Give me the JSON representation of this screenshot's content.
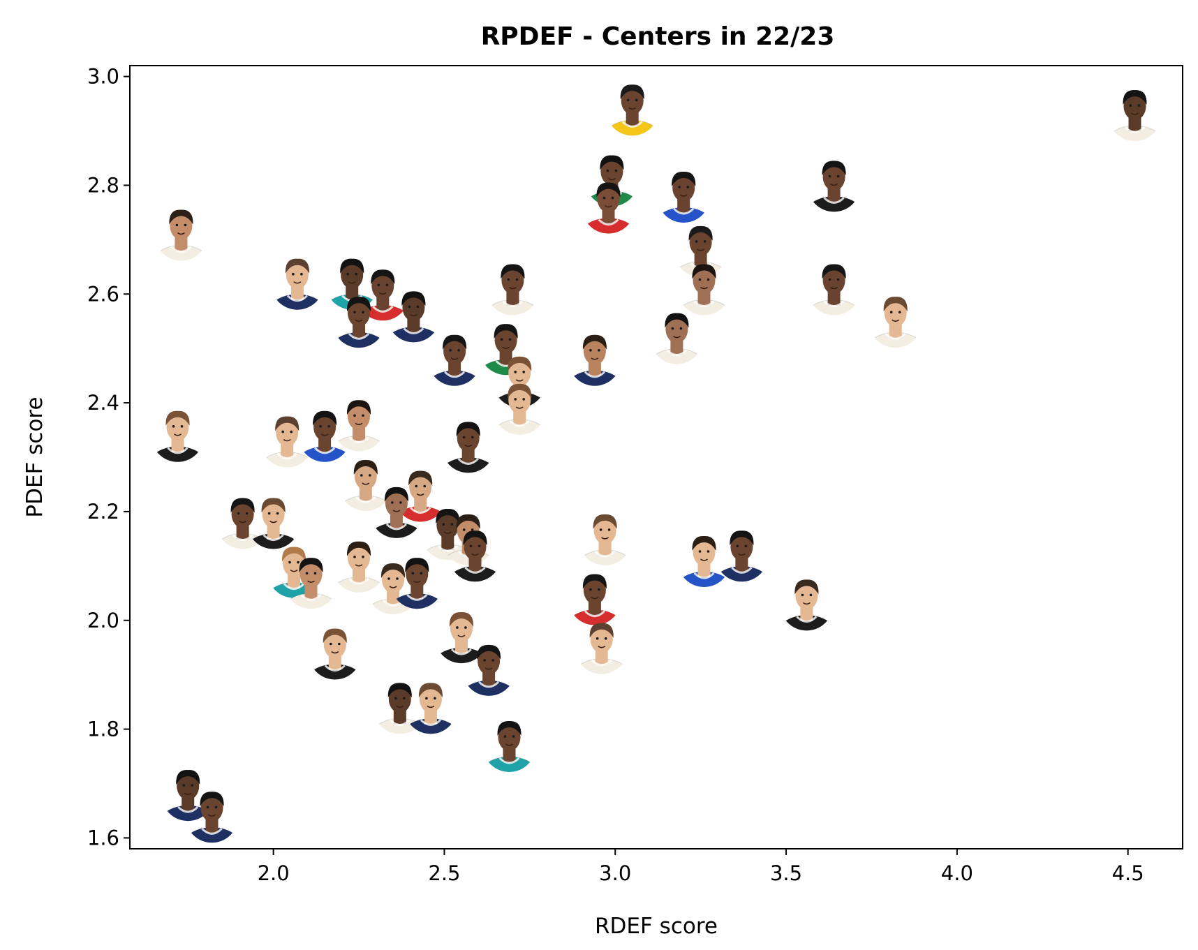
{
  "chart_data": {
    "type": "scatter",
    "title": "RPDEF - Centers in 22/23",
    "xlabel": "RDEF score",
    "ylabel": "PDEF score",
    "xlim": [
      1.58,
      4.66
    ],
    "ylim": [
      1.58,
      3.02
    ],
    "xticks": [
      "2.0",
      "2.5",
      "3.0",
      "3.5",
      "4.0",
      "4.5"
    ],
    "yticks": [
      "1.6",
      "1.8",
      "2.0",
      "2.2",
      "2.4",
      "2.6",
      "2.8",
      "3.0"
    ],
    "grid": false,
    "marker": "player-headshot",
    "points": [
      {
        "x": 3.05,
        "y": 2.94,
        "jersey": "#f5c518",
        "skin": "#6b4430",
        "hair": "#1a1a1a"
      },
      {
        "x": 4.52,
        "y": 2.93,
        "jersey": "#f3ede2",
        "skin": "#5a3a28",
        "hair": "#141414"
      },
      {
        "x": 2.99,
        "y": 2.81,
        "jersey": "#1e8a4a",
        "skin": "#6b4430",
        "hair": "#111111"
      },
      {
        "x": 2.98,
        "y": 2.76,
        "jersey": "#d62e2e",
        "skin": "#7a4e36",
        "hair": "#151515"
      },
      {
        "x": 3.2,
        "y": 2.78,
        "jersey": "#2454c8",
        "skin": "#6a4230",
        "hair": "#141414"
      },
      {
        "x": 3.64,
        "y": 2.8,
        "jersey": "#1c1c1c",
        "skin": "#6b4430",
        "hair": "#151515"
      },
      {
        "x": 1.73,
        "y": 2.71,
        "jersey": "#f3ede2",
        "skin": "#c48d6a",
        "hair": "#2c2017"
      },
      {
        "x": 3.25,
        "y": 2.68,
        "jersey": "#f3ede2",
        "skin": "#6b4430",
        "hair": "#1a1a1a"
      },
      {
        "x": 3.26,
        "y": 2.61,
        "jersey": "#f3ede2",
        "skin": "#a07055",
        "hair": "#1b1410"
      },
      {
        "x": 2.07,
        "y": 2.62,
        "jersey": "#1d3061",
        "skin": "#e4b893",
        "hair": "#5c4030"
      },
      {
        "x": 2.23,
        "y": 2.62,
        "jersey": "#1fa3a8",
        "skin": "#5a3a28",
        "hair": "#121212"
      },
      {
        "x": 2.32,
        "y": 2.6,
        "jersey": "#d62e2e",
        "skin": "#6a4230",
        "hair": "#151515"
      },
      {
        "x": 2.7,
        "y": 2.61,
        "jersey": "#f3ede2",
        "skin": "#6b4430",
        "hair": "#141414"
      },
      {
        "x": 3.64,
        "y": 2.61,
        "jersey": "#f3ede2",
        "skin": "#6a4230",
        "hair": "#151515"
      },
      {
        "x": 3.82,
        "y": 2.55,
        "jersey": "#f3ede2",
        "skin": "#e4b893",
        "hair": "#6b4a33"
      },
      {
        "x": 2.25,
        "y": 2.55,
        "jersey": "#1d3061",
        "skin": "#6b4430",
        "hair": "#141414"
      },
      {
        "x": 2.41,
        "y": 2.56,
        "jersey": "#1d3061",
        "skin": "#5a3a28",
        "hair": "#121212"
      },
      {
        "x": 2.53,
        "y": 2.48,
        "jersey": "#1d3061",
        "skin": "#6b4430",
        "hair": "#151515"
      },
      {
        "x": 2.68,
        "y": 2.5,
        "jersey": "#1e8a4a",
        "skin": "#6b4430",
        "hair": "#141414"
      },
      {
        "x": 2.94,
        "y": 2.48,
        "jersey": "#1d3061",
        "skin": "#b8835e",
        "hair": "#2a1e15"
      },
      {
        "x": 3.18,
        "y": 2.52,
        "jersey": "#f3ede2",
        "skin": "#a07055",
        "hair": "#121212"
      },
      {
        "x": 2.72,
        "y": 2.44,
        "jersey": "#1c1c1c",
        "skin": "#e4b893",
        "hair": "#7a5236"
      },
      {
        "x": 2.72,
        "y": 2.39,
        "jersey": "#f3ede2",
        "skin": "#e4b893",
        "hair": "#7a5236"
      },
      {
        "x": 1.72,
        "y": 2.34,
        "jersey": "#1c1c1c",
        "skin": "#e4b893",
        "hair": "#7a5236"
      },
      {
        "x": 2.04,
        "y": 2.33,
        "jersey": "#f3ede2",
        "skin": "#e4b893",
        "hair": "#5c4030"
      },
      {
        "x": 2.15,
        "y": 2.34,
        "jersey": "#2454c8",
        "skin": "#6b4430",
        "hair": "#141414"
      },
      {
        "x": 2.25,
        "y": 2.36,
        "jersey": "#f3ede2",
        "skin": "#c48d6a",
        "hair": "#1b1410"
      },
      {
        "x": 2.57,
        "y": 2.32,
        "jersey": "#1c1c1c",
        "skin": "#6b4430",
        "hair": "#121212"
      },
      {
        "x": 2.27,
        "y": 2.25,
        "jersey": "#f3ede2",
        "skin": "#d7a884",
        "hair": "#2a1e15"
      },
      {
        "x": 2.43,
        "y": 2.23,
        "jersey": "#d62e2e",
        "skin": "#d7a884",
        "hair": "#3a2a1e"
      },
      {
        "x": 2.36,
        "y": 2.2,
        "jersey": "#1c1c1c",
        "skin": "#a07055",
        "hair": "#121212"
      },
      {
        "x": 1.91,
        "y": 2.18,
        "jersey": "#f3ede2",
        "skin": "#6b4430",
        "hair": "#151515"
      },
      {
        "x": 2.0,
        "y": 2.18,
        "jersey": "#1c1c1c",
        "skin": "#e4b893",
        "hair": "#6b4a33"
      },
      {
        "x": 2.51,
        "y": 2.16,
        "jersey": "#f3ede2",
        "skin": "#5a3a28",
        "hair": "#141414"
      },
      {
        "x": 2.57,
        "y": 2.15,
        "jersey": "#f3ede2",
        "skin": "#c48d6a",
        "hair": "#2a1e15"
      },
      {
        "x": 2.97,
        "y": 2.15,
        "jersey": "#f3ede2",
        "skin": "#e4b893",
        "hair": "#6b4a33"
      },
      {
        "x": 2.06,
        "y": 2.09,
        "jersey": "#1fa3a8",
        "skin": "#e4b893",
        "hair": "#b07a4a"
      },
      {
        "x": 2.11,
        "y": 2.07,
        "jersey": "#f3ede2",
        "skin": "#c48d6a",
        "hair": "#141414"
      },
      {
        "x": 2.25,
        "y": 2.1,
        "jersey": "#f3ede2",
        "skin": "#e4b893",
        "hair": "#2a1e15"
      },
      {
        "x": 2.35,
        "y": 2.06,
        "jersey": "#f3ede2",
        "skin": "#e4b893",
        "hair": "#3a2a1e"
      },
      {
        "x": 2.42,
        "y": 2.07,
        "jersey": "#1d3061",
        "skin": "#6b4430",
        "hair": "#121212"
      },
      {
        "x": 2.59,
        "y": 2.12,
        "jersey": "#1c1c1c",
        "skin": "#6b4430",
        "hair": "#141414"
      },
      {
        "x": 3.26,
        "y": 2.11,
        "jersey": "#2454c8",
        "skin": "#e4b893",
        "hair": "#2a1e15"
      },
      {
        "x": 3.37,
        "y": 2.12,
        "jersey": "#1d3061",
        "skin": "#6b4430",
        "hair": "#141414"
      },
      {
        "x": 2.94,
        "y": 2.04,
        "jersey": "#d62e2e",
        "skin": "#6b4430",
        "hair": "#151515"
      },
      {
        "x": 3.56,
        "y": 2.03,
        "jersey": "#1c1c1c",
        "skin": "#e4b893",
        "hair": "#3a2a1e"
      },
      {
        "x": 2.96,
        "y": 1.95,
        "jersey": "#f3ede2",
        "skin": "#e4b893",
        "hair": "#5c4030"
      },
      {
        "x": 2.18,
        "y": 1.94,
        "jersey": "#1c1c1c",
        "skin": "#e4b893",
        "hair": "#7a5236"
      },
      {
        "x": 2.55,
        "y": 1.97,
        "jersey": "#1c1c1c",
        "skin": "#e4b893",
        "hair": "#7a5236"
      },
      {
        "x": 2.63,
        "y": 1.91,
        "jersey": "#1d3061",
        "skin": "#6b4430",
        "hair": "#141414"
      },
      {
        "x": 2.37,
        "y": 1.84,
        "jersey": "#f3ede2",
        "skin": "#5a3a28",
        "hair": "#121212"
      },
      {
        "x": 2.46,
        "y": 1.84,
        "jersey": "#1d3061",
        "skin": "#e4b893",
        "hair": "#6b4a33"
      },
      {
        "x": 2.69,
        "y": 1.77,
        "jersey": "#1fa3a8",
        "skin": "#6b4430",
        "hair": "#141414"
      },
      {
        "x": 1.75,
        "y": 1.68,
        "jersey": "#1d3061",
        "skin": "#5a3a28",
        "hair": "#121212"
      },
      {
        "x": 1.82,
        "y": 1.64,
        "jersey": "#1d3061",
        "skin": "#6b4430",
        "hair": "#141414"
      }
    ]
  }
}
